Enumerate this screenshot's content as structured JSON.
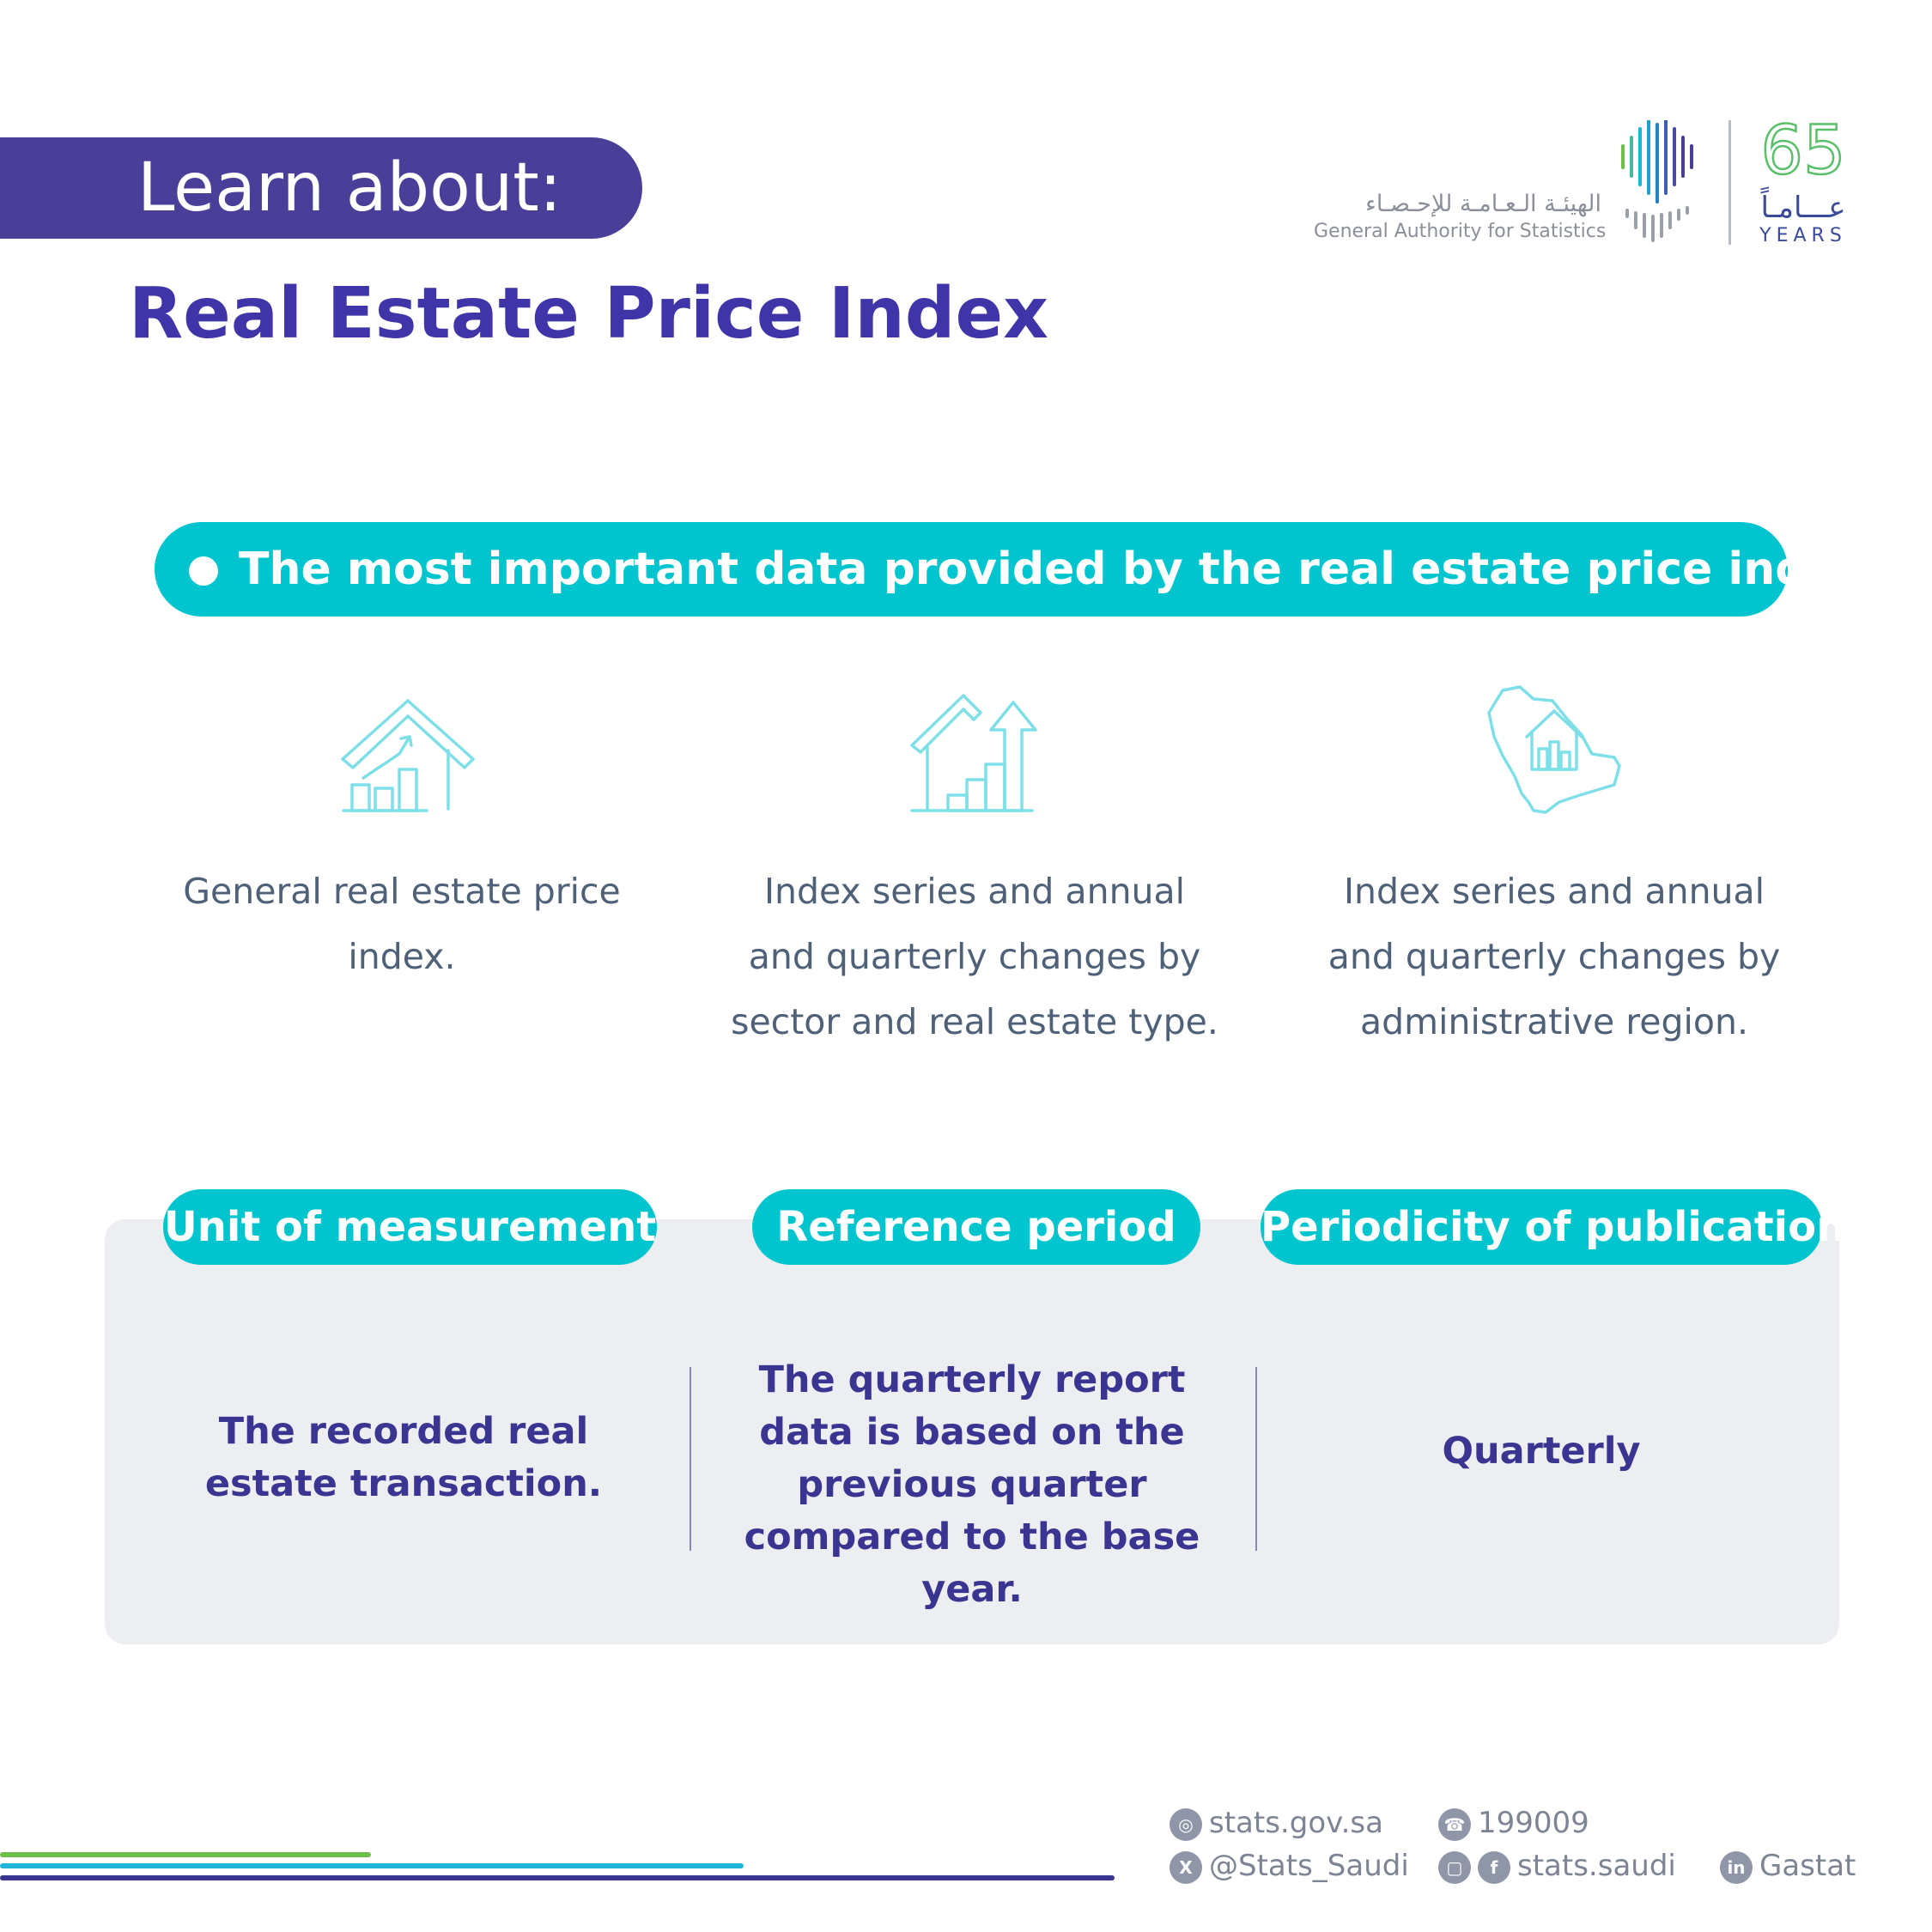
{
  "colors": {
    "purple": "#4a3f98",
    "title_purple": "#3f34a8",
    "teal": "#00c5cf",
    "icon_teal": "#7fdfe8",
    "panel_gray": "#eceef2",
    "value_purple": "#3b3592",
    "text_slate": "#4f6178"
  },
  "header": {
    "learn_label": "Learn about:",
    "title": "Real Estate Price Index"
  },
  "logo": {
    "arabic_name": "الهيئـة الـعـامـة للإحـصـاء",
    "english_name": "General Authority for Statistics",
    "anniversary_number": "65",
    "anniversary_arabic": "عـــامـاً",
    "anniversary_english": "YEARS",
    "icon": "gastat-logo-icon"
  },
  "headline": {
    "text": "The most important data provided by the real estate price index are:"
  },
  "features": [
    {
      "icon": "house-chart-icon",
      "text": "General real estate price index."
    },
    {
      "icon": "house-growth-arrow-icon",
      "text": "Index series and annual and quarterly changes by sector and real estate type."
    },
    {
      "icon": "saudi-map-house-icon",
      "text": "Index series and annual and quarterly changes by administrative region."
    }
  ],
  "details": [
    {
      "label": "Unit of measurement",
      "value": "The recorded real estate transaction."
    },
    {
      "label": "Reference period",
      "value": "The quarterly report data is based on the previous quarter compared to the base year."
    },
    {
      "label": "Periodicity of publication",
      "value": "Quarterly"
    }
  ],
  "footer": {
    "website": "stats.gov.sa",
    "phone": "199009",
    "x_handle": "@Stats_Saudi",
    "social_handle": "stats.saudi",
    "linkedin": "Gastat",
    "line_colors": [
      "#6cc04a",
      "#1fb5d9",
      "#3b3592"
    ]
  }
}
